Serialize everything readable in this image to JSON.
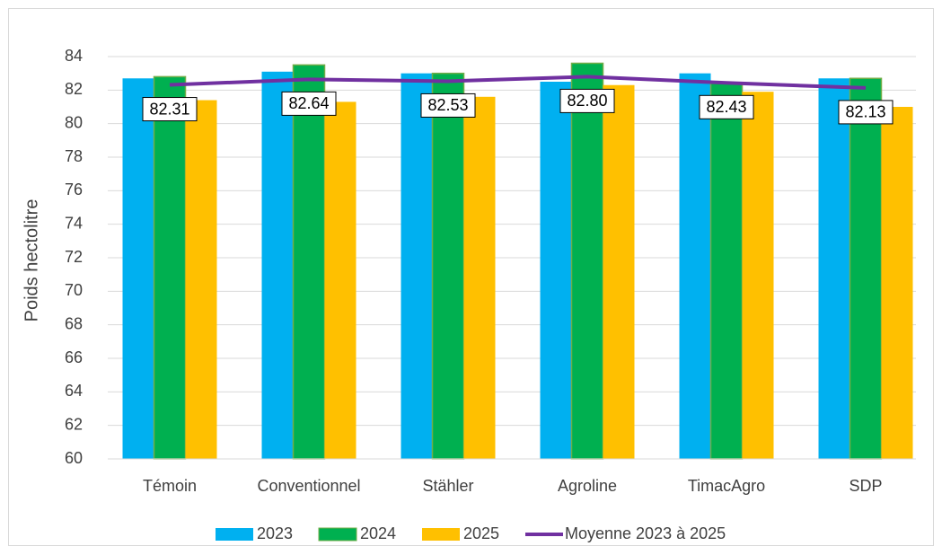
{
  "chart_data": {
    "type": "bar",
    "y_label": "Poids hectolitre",
    "categories": [
      "Témoin",
      "Conventionnel",
      "Stähler",
      "Agroline",
      "TimacAgro",
      "SDP"
    ],
    "series": [
      {
        "name": "2023",
        "color": "#00b0f0",
        "values": [
          82.7,
          83.1,
          83.0,
          82.5,
          83.0,
          82.7
        ]
      },
      {
        "name": "2024",
        "color": "#00b050",
        "values": [
          82.8,
          83.5,
          83.0,
          83.6,
          82.4,
          82.7
        ]
      },
      {
        "name": "2025",
        "color": "#ffc000",
        "values": [
          81.4,
          81.3,
          81.6,
          82.3,
          81.9,
          81.0
        ]
      },
      {
        "name": "Moyenne 2023 à 2025",
        "type": "line",
        "color": "#7030a0",
        "values": [
          82.31,
          82.64,
          82.53,
          82.8,
          82.43,
          82.13
        ],
        "value_labels": [
          "82.31",
          "82.64",
          "82.53",
          "82.80",
          "82.43",
          "82.13"
        ]
      }
    ],
    "ylim": [
      60,
      84
    ],
    "yticks": [
      60,
      62,
      64,
      66,
      68,
      70,
      72,
      74,
      76,
      78,
      80,
      82,
      84
    ],
    "grid": true,
    "legend": "bottom"
  }
}
